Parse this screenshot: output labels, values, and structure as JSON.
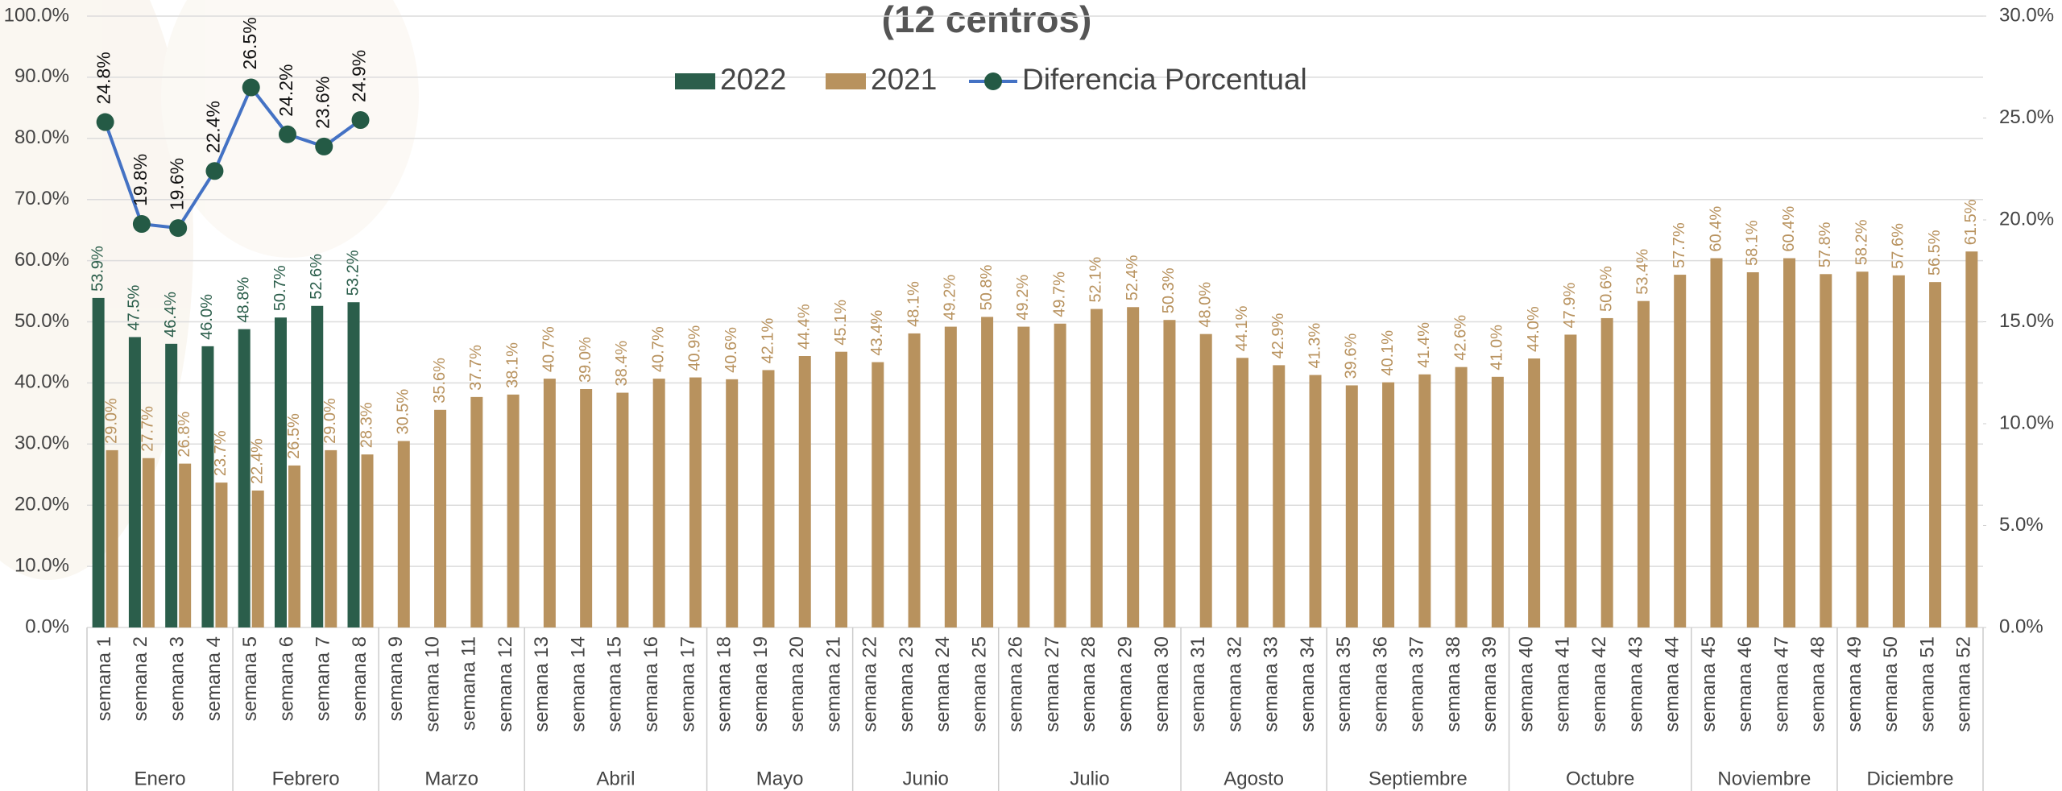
{
  "chart_data": {
    "type": "bar_line",
    "title": "(12 centros)",
    "categories": [
      "semana 1",
      "semana 2",
      "semana 3",
      "semana 4",
      "semana 5",
      "semana 6",
      "semana 7",
      "semana 8",
      "semana 9",
      "semana 10",
      "semana 11",
      "semana 12",
      "semana 13",
      "semana 14",
      "semana 15",
      "semana 16",
      "semana 17",
      "semana 18",
      "semana 19",
      "semana 20",
      "semana 21",
      "semana 22",
      "semana 23",
      "semana 24",
      "semana 25",
      "semana 26",
      "semana 27",
      "semana 28",
      "semana 29",
      "semana 30",
      "semana 31",
      "semana 32",
      "semana 33",
      "semana 34",
      "semana 35",
      "semana 36",
      "semana 37",
      "semana 38",
      "semana 39",
      "semana 40",
      "semana 41",
      "semana 42",
      "semana 43",
      "semana 44",
      "semana 45",
      "semana 46",
      "semana 47",
      "semana 48",
      "semana 49",
      "semana 50",
      "semana 51",
      "semana 52"
    ],
    "groups": [
      {
        "name": "Enero",
        "count": 4
      },
      {
        "name": "Febrero",
        "count": 4
      },
      {
        "name": "Marzo",
        "count": 4
      },
      {
        "name": "Abril",
        "count": 5
      },
      {
        "name": "Mayo",
        "count": 4
      },
      {
        "name": "Junio",
        "count": 4
      },
      {
        "name": "Julio",
        "count": 5
      },
      {
        "name": "Agosto",
        "count": 4
      },
      {
        "name": "Septiembre",
        "count": 5
      },
      {
        "name": "Octubre",
        "count": 5
      },
      {
        "name": "Noviembre",
        "count": 4
      },
      {
        "name": "Diciembre",
        "count": 4
      }
    ],
    "series": [
      {
        "name": "2022",
        "type": "bar",
        "color": "#2b5e4b",
        "values": [
          53.9,
          47.5,
          46.4,
          46.0,
          48.8,
          50.7,
          52.6,
          53.2,
          null,
          null,
          null,
          null,
          null,
          null,
          null,
          null,
          null,
          null,
          null,
          null,
          null,
          null,
          null,
          null,
          null,
          null,
          null,
          null,
          null,
          null,
          null,
          null,
          null,
          null,
          null,
          null,
          null,
          null,
          null,
          null,
          null,
          null,
          null,
          null,
          null,
          null,
          null,
          null,
          null,
          null,
          null,
          null
        ],
        "value_labels": [
          "53.9%",
          "47.5%",
          "46.4%",
          "46.0%",
          "48.8%",
          "50.7%",
          "52.6%",
          "53.2%",
          null,
          null,
          null,
          null,
          null,
          null,
          null,
          null,
          null,
          null,
          null,
          null,
          null,
          null,
          null,
          null,
          null,
          null,
          null,
          null,
          null,
          null,
          null,
          null,
          null,
          null,
          null,
          null,
          null,
          null,
          null,
          null,
          null,
          null,
          null,
          null,
          null,
          null,
          null,
          null,
          null,
          null,
          null,
          null
        ]
      },
      {
        "name": "2021",
        "type": "bar",
        "color": "#b8925e",
        "values": [
          29.0,
          27.7,
          26.8,
          23.7,
          22.4,
          26.5,
          29.0,
          28.3,
          30.5,
          35.6,
          37.7,
          38.1,
          40.7,
          39.0,
          38.4,
          40.7,
          40.9,
          40.6,
          42.1,
          44.4,
          45.1,
          43.4,
          48.1,
          49.2,
          50.8,
          49.2,
          49.7,
          52.1,
          52.4,
          50.3,
          48.0,
          44.1,
          42.9,
          41.3,
          39.6,
          40.1,
          41.4,
          42.6,
          41.0,
          44.0,
          47.9,
          50.6,
          53.4,
          57.7,
          60.4,
          58.1,
          60.4,
          57.8,
          58.2,
          57.6,
          56.5,
          61.5
        ],
        "value_labels": [
          "29.0%",
          "27.7%",
          "26.8%",
          "23.7%",
          "22.4%",
          "26.5%",
          "29.0%",
          "28.3%",
          "30.5%",
          "35.6%",
          "37.7%",
          "38.1%",
          "40.7%",
          "39.0%",
          "38.4%",
          "40.7%",
          "40.9%",
          "40.6%",
          "42.1%",
          "44.4%",
          "45.1%",
          "43.4%",
          "48.1%",
          "49.2%",
          "50.8%",
          "49.2%",
          "49.7%",
          "52.1%",
          "52.4%",
          "50.3%",
          "48.0%",
          "44.1%",
          "42.9%",
          "41.3%",
          "39.6%",
          "40.1%",
          "41.4%",
          "42.6%",
          "41.0%",
          "44.0%",
          "47.9%",
          "50.6%",
          "53.4%",
          "57.7%",
          "60.4%",
          "58.1%",
          "60.4%",
          "57.8%",
          "58.2%",
          "57.6%",
          "56.5%",
          "61.5%"
        ]
      },
      {
        "name": "Diferencia Porcentual",
        "type": "line",
        "axis": "y2",
        "color": "#4472c4",
        "marker_color": "#245a45",
        "values": [
          24.8,
          19.8,
          19.6,
          22.4,
          26.5,
          24.2,
          23.6,
          24.9,
          null,
          null,
          null,
          null,
          null,
          null,
          null,
          null,
          null,
          null,
          null,
          null,
          null,
          null,
          null,
          null,
          null,
          null,
          null,
          null,
          null,
          null,
          null,
          null,
          null,
          null,
          null,
          null,
          null,
          null,
          null,
          null,
          null,
          null,
          null,
          null,
          null,
          null,
          null,
          null,
          null,
          null,
          null,
          null
        ],
        "value_labels": [
          "24.8%",
          "19.8%",
          "19.6%",
          "22.4%",
          "26.5%",
          "24.2%",
          "23.6%",
          "24.9%",
          null,
          null,
          null,
          null,
          null,
          null,
          null,
          null,
          null,
          null,
          null,
          null,
          null,
          null,
          null,
          null,
          null,
          null,
          null,
          null,
          null,
          null,
          null,
          null,
          null,
          null,
          null,
          null,
          null,
          null,
          null,
          null,
          null,
          null,
          null,
          null,
          null,
          null,
          null,
          null,
          null,
          null,
          null,
          null
        ]
      }
    ],
    "ylim": [
      0,
      100
    ],
    "yticks": [
      {
        "value": 0,
        "label": "0.0%"
      },
      {
        "value": 10,
        "label": "10.0%"
      },
      {
        "value": 20,
        "label": "20.0%"
      },
      {
        "value": 30,
        "label": "30.0%"
      },
      {
        "value": 40,
        "label": "40.0%"
      },
      {
        "value": 50,
        "label": "50.0%"
      },
      {
        "value": 60,
        "label": "60.0%"
      },
      {
        "value": 70,
        "label": "70.0%"
      },
      {
        "value": 80,
        "label": "80.0%"
      },
      {
        "value": 90,
        "label": "90.0%"
      },
      {
        "value": 100,
        "label": "100.0%"
      }
    ],
    "y2lim": [
      0,
      30
    ],
    "y2ticks": [
      {
        "value": 0,
        "label": "0.0%"
      },
      {
        "value": 5,
        "label": "5.0%"
      },
      {
        "value": 10,
        "label": "10.0%"
      },
      {
        "value": 15,
        "label": "15.0%"
      },
      {
        "value": 20,
        "label": "20.0%"
      },
      {
        "value": 25,
        "label": "25.0%"
      },
      {
        "value": 30,
        "label": "30.0%"
      }
    ],
    "grid": true
  }
}
